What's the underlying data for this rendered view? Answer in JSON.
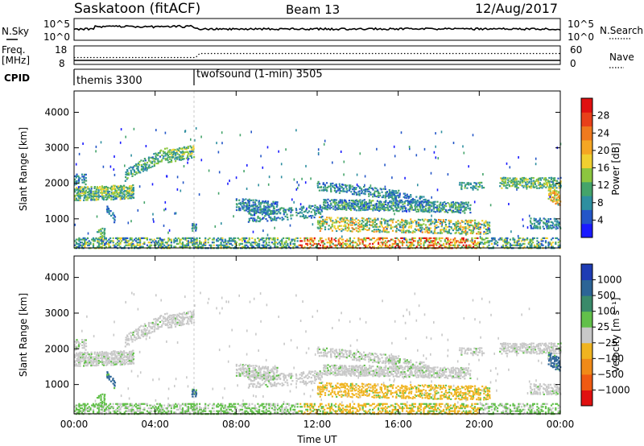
{
  "header": {
    "title": "Saskatoon (fitACF)",
    "beam": "Beam 13",
    "date": "12/Aug/2017"
  },
  "left_labels": {
    "nsky": "N.Sky",
    "freq_line1": "Freq.",
    "freq_line2": "[MHz]",
    "cpid": "CPID"
  },
  "right_labels": {
    "nsearch": "N.Search",
    "nave": "Nave"
  },
  "nsky_panel": {
    "left_ticks": [
      "10^5",
      "10^0"
    ],
    "right_ticks": [
      "10^5",
      "10^0"
    ]
  },
  "freq_panel": {
    "left_ticks": [
      "18",
      "8"
    ],
    "right_ticks": [
      "60",
      "0"
    ]
  },
  "cpid_panel": {
    "segments": [
      {
        "label": "themis 3300",
        "start_hour": 0
      },
      {
        "label": "twofsound (1-min) 3505",
        "start_hour": 6.1
      }
    ]
  },
  "chart_data": [
    {
      "type": "heatmap",
      "name": "power",
      "ylabel": "Slant Range [km]",
      "xlabel": "",
      "ylim": [
        180,
        4600
      ],
      "xlim": [
        0,
        24
      ],
      "yticks": [
        "1000",
        "2000",
        "3000",
        "4000"
      ],
      "ytick_values": [
        1000,
        2000,
        3000,
        4000
      ],
      "colorbar": {
        "label": "Power [dB]",
        "ticks": [
          "4",
          "8",
          "12",
          "16",
          "20",
          "24",
          "28"
        ],
        "tick_values": [
          4,
          8,
          12,
          16,
          20,
          24,
          28
        ],
        "range": [
          0,
          32
        ],
        "colors": [
          "#1a1aff",
          "#2456c8",
          "#2e8fa0",
          "#44a46a",
          "#8cc63f",
          "#f0d030",
          "#f5a623",
          "#ef7a1e",
          "#e8401a",
          "#e01010"
        ]
      }
    },
    {
      "type": "heatmap",
      "name": "velocity",
      "ylabel": "Slant Range [km]",
      "xlabel": "Time UT",
      "ylim": [
        180,
        4600
      ],
      "xlim": [
        0,
        24
      ],
      "yticks": [
        "1000",
        "2000",
        "3000",
        "4000"
      ],
      "ytick_values": [
        1000,
        2000,
        3000,
        4000
      ],
      "xticks": [
        "00:00",
        "04:00",
        "08:00",
        "12:00",
        "16:00",
        "20:00",
        "00:00"
      ],
      "xtick_values": [
        0,
        4,
        8,
        12,
        16,
        20,
        24
      ],
      "colorbar": {
        "label": "Velocity [m s⁻¹]",
        "ticks": [
          "1000",
          "500",
          "100",
          "25",
          "−25",
          "−100",
          "−500",
          "−1000"
        ],
        "colors": [
          "#1e3cb4",
          "#2c6496",
          "#3a8a6a",
          "#62c04a",
          "#c8c8c8",
          "#f0b420",
          "#f08a18",
          "#ef5a12",
          "#e01010"
        ]
      }
    }
  ]
}
